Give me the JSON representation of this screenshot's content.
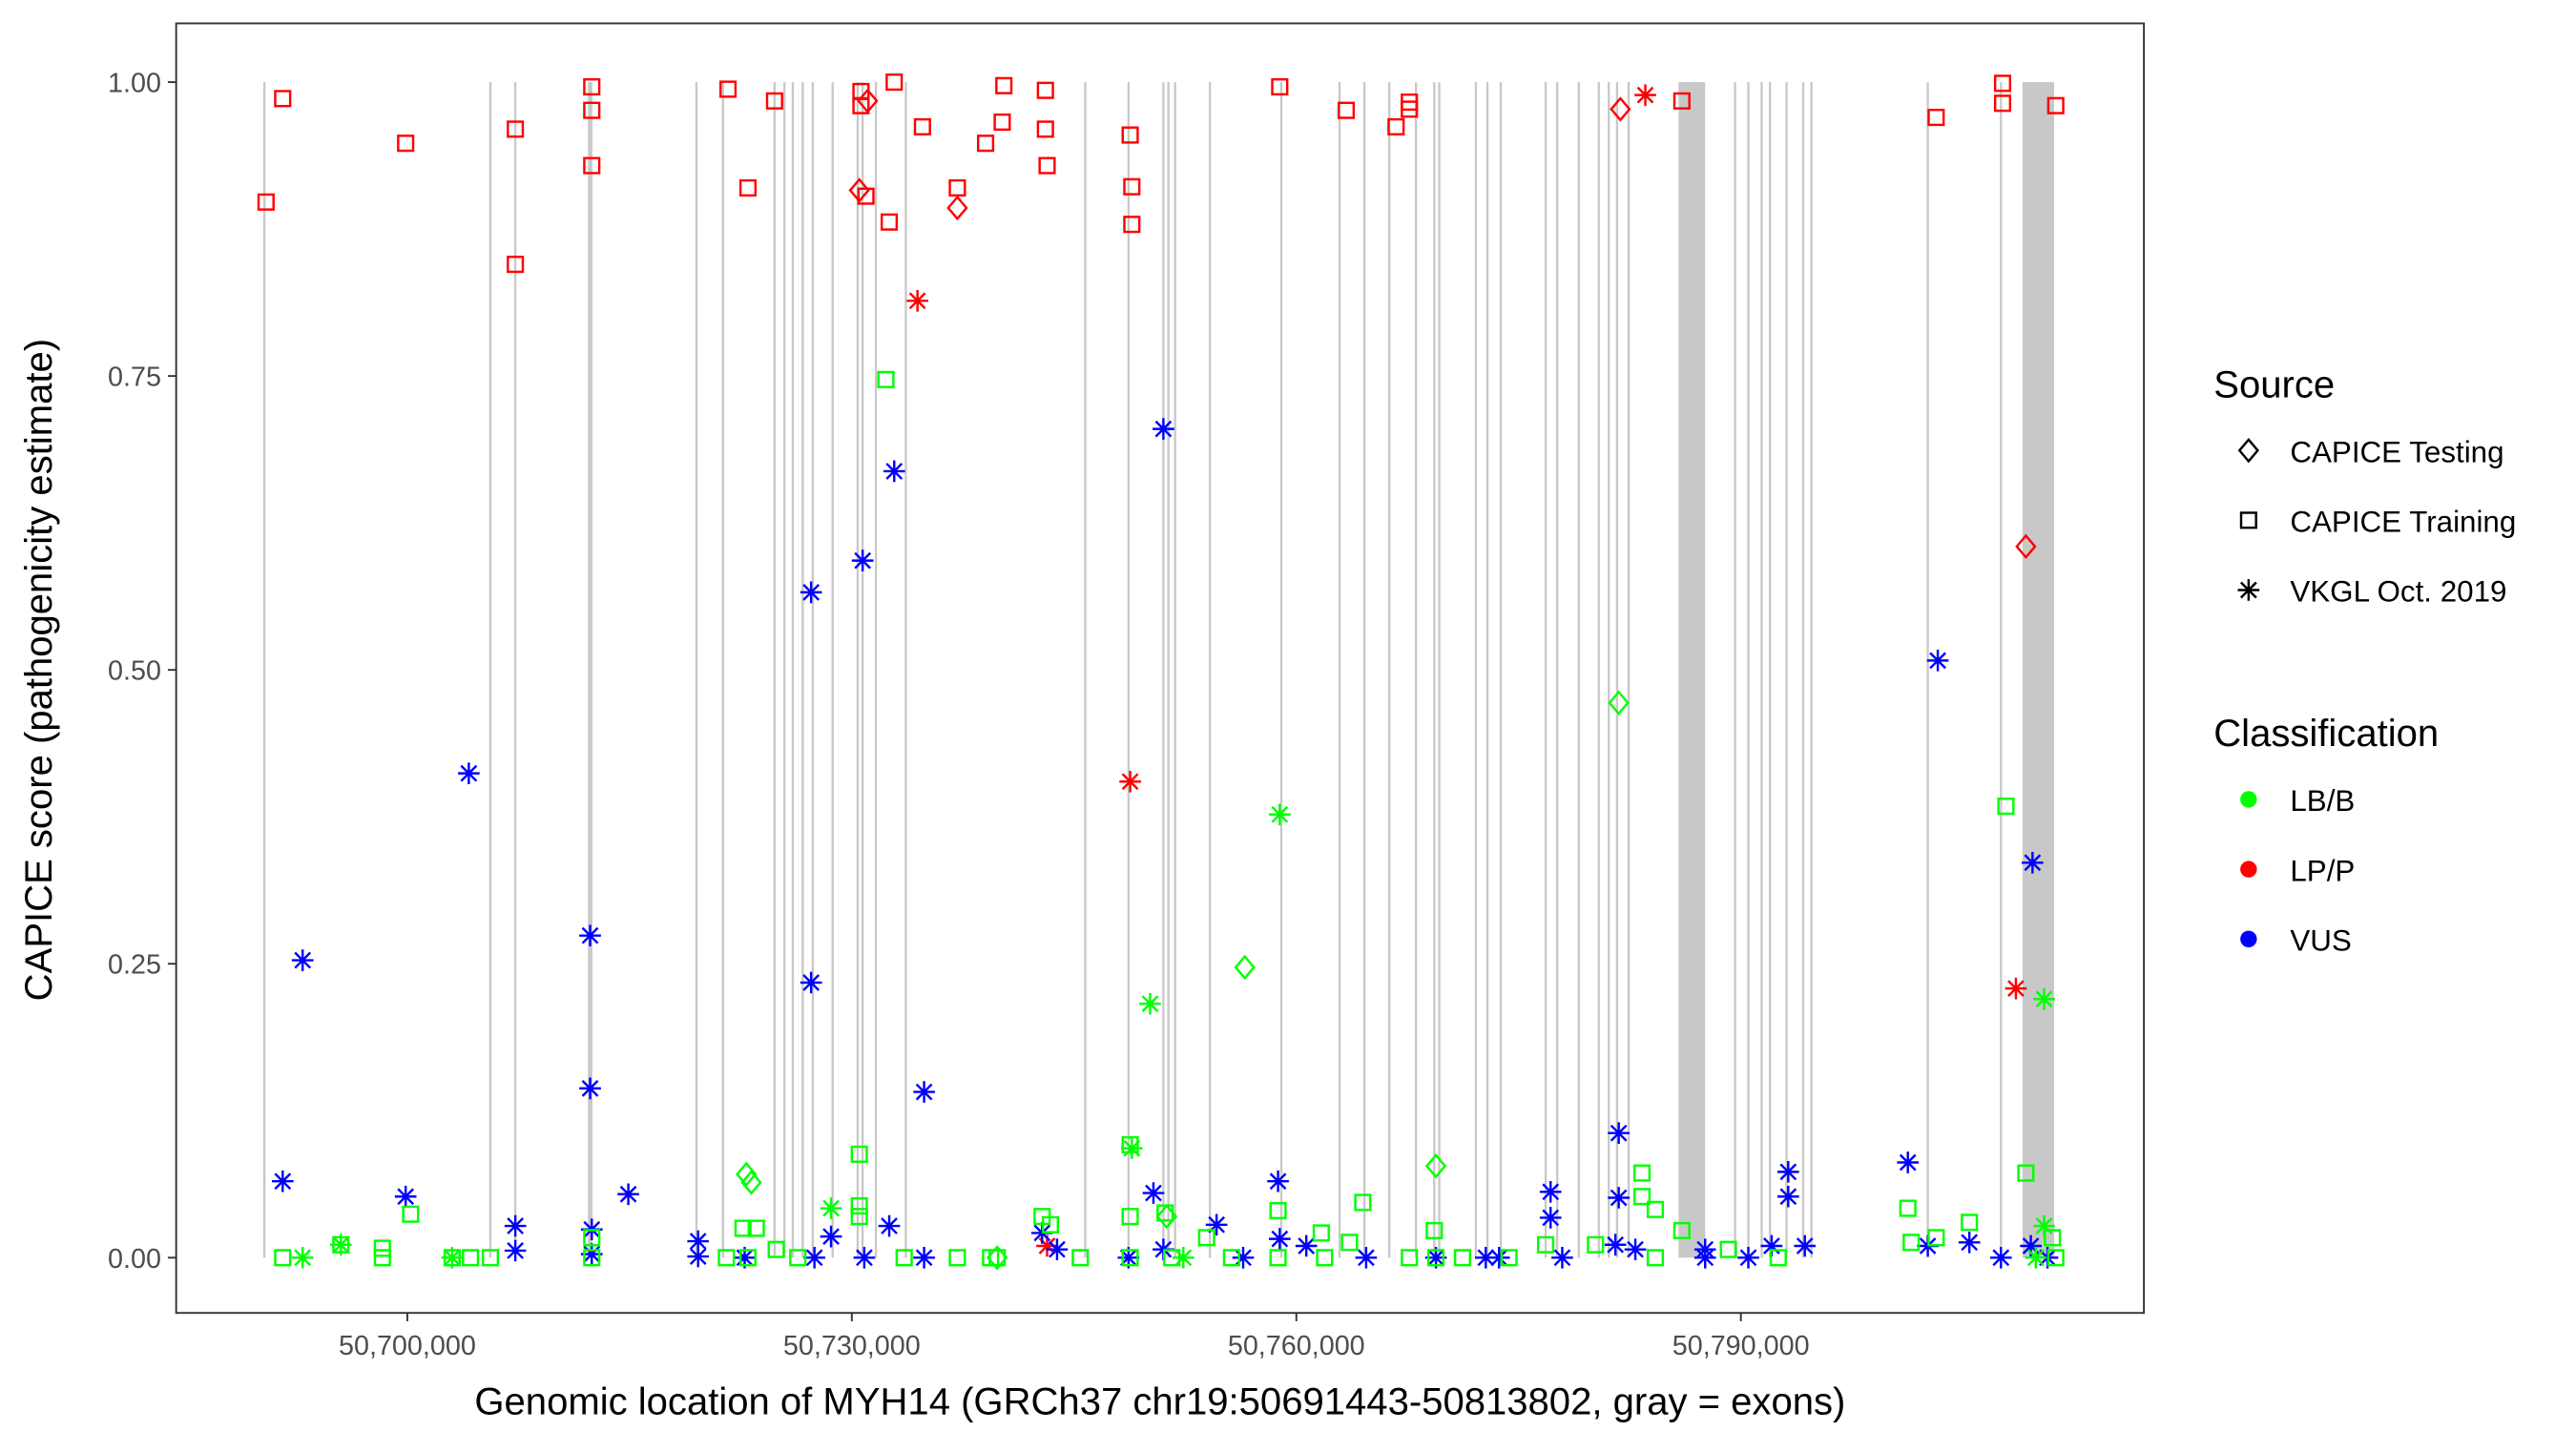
{
  "chart_data": {
    "type": "scatter",
    "title": "",
    "xlabel": "Genomic location of MYH14 (GRCh37 chr19:50691443-50813802, gray = exons)",
    "ylabel": "CAPICE score (pathogenicity estimate)",
    "xlim": [
      50684400,
      50817200
    ],
    "ylim": [
      -0.047,
      1.05
    ],
    "x_ticks": [
      50700000,
      50730000,
      50760000,
      50790000
    ],
    "x_tick_labels": [
      "50,700,000",
      "50,730,000",
      "50,760,000",
      "50,790,000"
    ],
    "y_ticks": [
      0,
      0.25,
      0.5,
      0.75,
      1.0
    ],
    "y_tick_labels": [
      "0.00",
      "0.25",
      "0.50",
      "0.75",
      "1.00"
    ],
    "grid": false,
    "legend_position": "right",
    "colors": {
      "LB/B": "#00FF00",
      "LP/P": "#FF0000",
      "VUS": "#0000FF",
      "exon": "#C8C8C8"
    },
    "legend": {
      "source_title": "Source",
      "source_items": [
        {
          "label": "CAPICE Testing",
          "shape": "diamond"
        },
        {
          "label": "CAPICE Training",
          "shape": "square"
        },
        {
          "label": "VKGL Oct. 2019",
          "shape": "asterisk"
        }
      ],
      "classification_title": "Classification",
      "classification_items": [
        {
          "label": "LB/B",
          "color": "#00FF00"
        },
        {
          "label": "LP/P",
          "color": "#FF0000"
        },
        {
          "label": "VUS",
          "color": "#0000FF"
        }
      ]
    },
    "exons": [
      [
        50690280,
        50690430
      ],
      [
        50705530,
        50705680
      ],
      [
        50707210,
        50707360
      ],
      [
        50712190,
        50712490
      ],
      [
        50719440,
        50719590
      ],
      [
        50721230,
        50721380
      ],
      [
        50724710,
        50724860
      ],
      [
        50725380,
        50725530
      ],
      [
        50725940,
        50726090
      ],
      [
        50726610,
        50726760
      ],
      [
        50727290,
        50727440
      ],
      [
        50728630,
        50728780
      ],
      [
        50730320,
        50730470
      ],
      [
        50730650,
        50730800
      ],
      [
        50731550,
        50731700
      ],
      [
        50733570,
        50733720
      ],
      [
        50745680,
        50745830
      ],
      [
        50748600,
        50748750
      ],
      [
        50750950,
        50751100
      ],
      [
        50751290,
        50751440
      ],
      [
        50751740,
        50751890
      ],
      [
        50754090,
        50754240
      ],
      [
        50758910,
        50759060
      ],
      [
        50762840,
        50762990
      ],
      [
        50764520,
        50764670
      ],
      [
        50766200,
        50766350
      ],
      [
        50768000,
        50768150
      ],
      [
        50769230,
        50769380
      ],
      [
        50769570,
        50769720
      ],
      [
        50772040,
        50772190
      ],
      [
        50772820,
        50772970
      ],
      [
        50773720,
        50773870
      ],
      [
        50776750,
        50776900
      ],
      [
        50777530,
        50777680
      ],
      [
        50778990,
        50779140
      ],
      [
        50780340,
        50780490
      ],
      [
        50781010,
        50781160
      ],
      [
        50781570,
        50781720
      ],
      [
        50782350,
        50782500
      ],
      [
        50785795,
        50787589
      ],
      [
        50789530,
        50789680
      ],
      [
        50790430,
        50790580
      ],
      [
        50791330,
        50791480
      ],
      [
        50791890,
        50792040
      ],
      [
        50793010,
        50793160
      ],
      [
        50794130,
        50794280
      ],
      [
        50794690,
        50794840
      ],
      [
        50802540,
        50802690
      ],
      [
        50807480,
        50807630
      ],
      [
        50809010,
        50811140
      ]
    ],
    "series": [
      {
        "source": "CAPICE Training",
        "classification": "LP/P",
        "points": [
          [
            50690467,
            0.898
          ],
          [
            50691589,
            0.986
          ],
          [
            50699888,
            0.948
          ],
          [
            50707290,
            0.96
          ],
          [
            50707290,
            0.845
          ],
          [
            50712449,
            0.996
          ],
          [
            50712449,
            0.976
          ],
          [
            50712449,
            0.929
          ],
          [
            50721645,
            0.994
          ],
          [
            50722991,
            0.91
          ],
          [
            50724785,
            0.984
          ],
          [
            50730617,
            0.992
          ],
          [
            50730617,
            0.98
          ],
          [
            50730953,
            0.903
          ],
          [
            50732860,
            1.0
          ],
          [
            50732524,
            0.881
          ],
          [
            50734766,
            0.962
          ],
          [
            50737121,
            0.91
          ],
          [
            50739028,
            0.948
          ],
          [
            50740149,
            0.966
          ],
          [
            50740261,
            0.997
          ],
          [
            50743065,
            0.993
          ],
          [
            50743065,
            0.96
          ],
          [
            50743178,
            0.929
          ],
          [
            50748785,
            0.955
          ],
          [
            50748897,
            0.911
          ],
          [
            50748897,
            0.879
          ],
          [
            50758879,
            0.996
          ],
          [
            50763365,
            0.976
          ],
          [
            50766730,
            0.962
          ],
          [
            50767627,
            0.983
          ],
          [
            50767627,
            0.977
          ],
          [
            50786019,
            0.984
          ],
          [
            50803178,
            0.97
          ],
          [
            50807664,
            0.999
          ],
          [
            50807664,
            0.982
          ],
          [
            50811253,
            0.98
          ]
        ]
      },
      {
        "source": "CAPICE Testing",
        "classification": "LP/P",
        "points": [
          [
            50730505,
            0.908
          ],
          [
            50731066,
            0.984
          ],
          [
            50737121,
            0.893
          ],
          [
            50781870,
            0.977
          ],
          [
            50809236,
            0.605
          ]
        ]
      },
      {
        "source": "VKGL Oct. 2019",
        "classification": "LP/P",
        "points": [
          [
            50734430,
            0.814
          ],
          [
            50748785,
            0.405
          ],
          [
            50783552,
            0.989
          ],
          [
            50808563,
            0.229
          ],
          [
            50743178,
            0.01
          ]
        ]
      },
      {
        "source": "VKGL Oct. 2019",
        "classification": "VUS",
        "points": [
          [
            50691589,
            0.065
          ],
          [
            50692935,
            0.253
          ],
          [
            50704150,
            0.412
          ],
          [
            50699888,
            0.052
          ],
          [
            50707290,
            0.027
          ],
          [
            50707290,
            0.006
          ],
          [
            50712337,
            0.274
          ],
          [
            50712337,
            0.144
          ],
          [
            50712449,
            0.024
          ],
          [
            50712449,
            0.003
          ],
          [
            50714916,
            0.054
          ],
          [
            50719626,
            0.014
          ],
          [
            50719626,
            0.001
          ],
          [
            50722767,
            0.0
          ],
          [
            50727253,
            0.234
          ],
          [
            50727253,
            0.566
          ],
          [
            50727477,
            0.0
          ],
          [
            50728598,
            0.018
          ],
          [
            50730729,
            0.593
          ],
          [
            50730841,
            0.0
          ],
          [
            50732524,
            0.027
          ],
          [
            50732860,
            0.669
          ],
          [
            50734878,
            0.141
          ],
          [
            50734878,
            0.0
          ],
          [
            50742841,
            0.021
          ],
          [
            50743850,
            0.007
          ],
          [
            50748673,
            0.0
          ],
          [
            50750355,
            0.055
          ],
          [
            50751028,
            0.705
          ],
          [
            50751028,
            0.007
          ],
          [
            50754617,
            0.028
          ],
          [
            50756411,
            0.0
          ],
          [
            50758766,
            0.065
          ],
          [
            50758879,
            0.016
          ],
          [
            50760673,
            0.01
          ],
          [
            50764710,
            0.0
          ],
          [
            50769421,
            0.0
          ],
          [
            50772785,
            0.0
          ],
          [
            50773682,
            0.0
          ],
          [
            50777159,
            0.056
          ],
          [
            50777159,
            0.034
          ],
          [
            50777944,
            0.0
          ],
          [
            50781757,
            0.106
          ],
          [
            50781757,
            0.051
          ],
          [
            50781533,
            0.011
          ],
          [
            50782878,
            0.007
          ],
          [
            50787589,
            0.007
          ],
          [
            50787589,
            0.0
          ],
          [
            50790505,
            0.0
          ],
          [
            50792075,
            0.01
          ],
          [
            50793197,
            0.073
          ],
          [
            50793197,
            0.052
          ],
          [
            50794318,
            0.01
          ],
          [
            50801271,
            0.081
          ],
          [
            50802617,
            0.01
          ],
          [
            50803290,
            0.508
          ],
          [
            50805421,
            0.013
          ],
          [
            50807552,
            0.0
          ],
          [
            50809683,
            0.336
          ],
          [
            50809571,
            0.01
          ],
          [
            50810692,
            0.0
          ]
        ]
      },
      {
        "source": "CAPICE Training",
        "classification": "LB/B",
        "points": [
          [
            50691589,
            0.0
          ],
          [
            50695514,
            0.011
          ],
          [
            50698318,
            0.008
          ],
          [
            50698318,
            0.0
          ],
          [
            50700224,
            0.037
          ],
          [
            50703028,
            0.0
          ],
          [
            50704262,
            0.0
          ],
          [
            50705607,
            0.0
          ],
          [
            50712449,
            0.017
          ],
          [
            50712449,
            0.0
          ],
          [
            50721533,
            0.0
          ],
          [
            50722655,
            0.025
          ],
          [
            50723552,
            0.025
          ],
          [
            50722991,
            0.0
          ],
          [
            50724897,
            0.007
          ],
          [
            50726355,
            0.0
          ],
          [
            50730505,
            0.088
          ],
          [
            50730505,
            0.044
          ],
          [
            50730505,
            0.035
          ],
          [
            50732299,
            0.747
          ],
          [
            50733533,
            0.0
          ],
          [
            50737121,
            0.0
          ],
          [
            50739364,
            0.0
          ],
          [
            50739813,
            0.0
          ],
          [
            50742841,
            0.035
          ],
          [
            50743402,
            0.028
          ],
          [
            50745421,
            0.0
          ],
          [
            50748785,
            0.096
          ],
          [
            50748785,
            0.035
          ],
          [
            50748785,
            0.0
          ],
          [
            50751140,
            0.038
          ],
          [
            50751589,
            0.0
          ],
          [
            50753944,
            0.017
          ],
          [
            50755626,
            0.0
          ],
          [
            50758766,
            0.04
          ],
          [
            50758766,
            0.0
          ],
          [
            50761682,
            0.021
          ],
          [
            50761906,
            0.0
          ],
          [
            50763589,
            0.013
          ],
          [
            50764486,
            0.047
          ],
          [
            50767627,
            0.0
          ],
          [
            50769309,
            0.023
          ],
          [
            50769421,
            0.0
          ],
          [
            50771215,
            0.0
          ],
          [
            50774355,
            0.0
          ],
          [
            50776822,
            0.011
          ],
          [
            50780187,
            0.011
          ],
          [
            50783328,
            0.072
          ],
          [
            50783328,
            0.052
          ],
          [
            50784225,
            0.041
          ],
          [
            50784225,
            0.0
          ],
          [
            50786019,
            0.023
          ],
          [
            50789159,
            0.007
          ],
          [
            50792523,
            0.0
          ],
          [
            50801271,
            0.042
          ],
          [
            50801495,
            0.013
          ],
          [
            50803178,
            0.017
          ],
          [
            50805421,
            0.03
          ],
          [
            50807888,
            0.384
          ],
          [
            50809236,
            0.072
          ],
          [
            50811028,
            0.017
          ],
          [
            50811253,
            0.0
          ]
        ]
      },
      {
        "source": "CAPICE Testing",
        "classification": "LB/B",
        "points": [
          [
            50722879,
            0.071
          ],
          [
            50723215,
            0.064
          ],
          [
            50751252,
            0.035
          ],
          [
            50756523,
            0.247
          ],
          [
            50769421,
            0.078
          ],
          [
            50781757,
            0.472
          ],
          [
            50739813,
            0.0
          ]
        ]
      },
      {
        "source": "VKGL Oct. 2019",
        "classification": "LB/B",
        "points": [
          [
            50692935,
            0.0
          ],
          [
            50695514,
            0.011
          ],
          [
            50703028,
            0.0
          ],
          [
            50728598,
            0.042
          ],
          [
            50750131,
            0.216
          ],
          [
            50748897,
            0.093
          ],
          [
            50758879,
            0.377
          ],
          [
            50752374,
            0.0
          ],
          [
            50810467,
            0.22
          ],
          [
            50810467,
            0.027
          ],
          [
            50809907,
            0.0
          ]
        ]
      }
    ]
  }
}
